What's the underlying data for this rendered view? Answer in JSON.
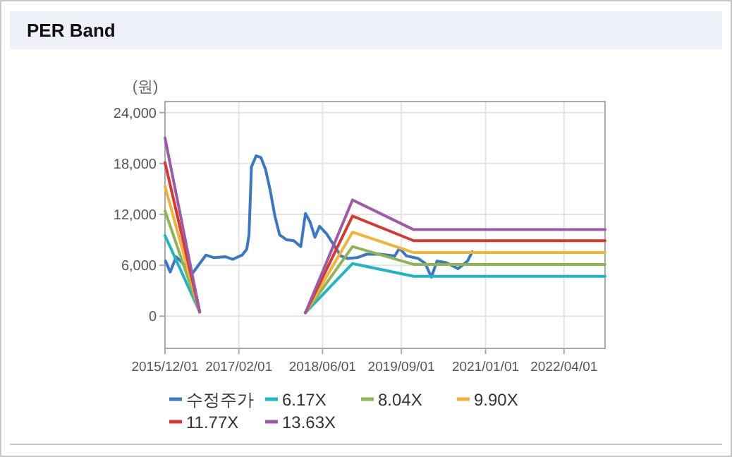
{
  "chart_data": {
    "type": "line",
    "title": "PER Band",
    "ylabel": "(원)",
    "xlim": [
      "2015-12-01",
      "2022-11-25"
    ],
    "ylim": [
      -3800,
      25300
    ],
    "xticks": [
      {
        "value": "2015-12-01",
        "label": "2015/12/01"
      },
      {
        "value": "2017-02-01",
        "label": "2017/02/01"
      },
      {
        "value": "2018-06-01",
        "label": "2018/06/01"
      },
      {
        "value": "2019-09-01",
        "label": "2019/09/01"
      },
      {
        "value": "2021-01-01",
        "label": "2021/01/01"
      },
      {
        "value": "2022-04-01",
        "label": "2022/04/01"
      }
    ],
    "yticks": [
      {
        "value": 0,
        "label": "0"
      },
      {
        "value": 6000,
        "label": "6,000"
      },
      {
        "value": 12000,
        "label": "12,000"
      },
      {
        "value": 18000,
        "label": "18,000"
      },
      {
        "value": 24000,
        "label": "24,000"
      }
    ],
    "grid": true,
    "legend": "bottom",
    "series": [
      {
        "name": "수정주가",
        "color": "#3a78c3",
        "x": [
          "2015-12-04",
          "2015-12-31",
          "2016-02-04",
          "2016-05-10",
          "2016-07-25",
          "2016-09-09",
          "2016-11-16",
          "2016-12-27",
          "2017-02-20",
          "2017-03-19",
          "2017-04-01",
          "2017-04-15",
          "2017-05-12",
          "2017-06-09",
          "2017-07-06",
          "2017-08-02",
          "2017-08-29",
          "2017-09-25",
          "2017-11-05",
          "2017-12-16",
          "2018-01-26",
          "2018-02-22",
          "2018-03-21",
          "2018-04-18",
          "2018-05-15",
          "2018-06-25",
          "2018-08-05",
          "2018-09-15",
          "2018-10-25",
          "2018-12-19",
          "2019-02-11",
          "2019-05-04",
          "2019-07-25",
          "2019-08-21",
          "2019-10-01",
          "2019-12-08",
          "2020-01-18",
          "2020-02-22",
          "2020-03-26",
          "2020-05-19",
          "2020-07-26",
          "2020-09-19",
          "2020-10-16"
        ],
        "values": [
          6500,
          5200,
          7000,
          5100,
          7200,
          6900,
          7000,
          6700,
          7200,
          7900,
          9600,
          17600,
          18900,
          18700,
          17300,
          14800,
          11800,
          9600,
          9000,
          8900,
          8200,
          12100,
          11100,
          9300,
          10600,
          9700,
          8400,
          7100,
          6800,
          6900,
          7300,
          7300,
          7100,
          8000,
          7100,
          6800,
          6200,
          4600,
          6500,
          6300,
          5600,
          6500,
          7600
        ]
      },
      {
        "name": "6.17X",
        "color": "#1fb5c4",
        "x": [
          "2015-12-01",
          "2016-06-19",
          "2017-06-01",
          "2018-02-22",
          "2018-11-22",
          "2019-11-11",
          "2022-11-25"
        ],
        "values": [
          9500,
          500,
          null,
          400,
          6200,
          4700,
          4700
        ]
      },
      {
        "name": "8.04X",
        "color": "#8db554",
        "x": [
          "2015-12-01",
          "2016-06-19",
          "2017-06-01",
          "2018-02-22",
          "2018-11-22",
          "2019-11-11",
          "2022-11-25"
        ],
        "values": [
          12400,
          500,
          null,
          400,
          8200,
          6100,
          6100
        ]
      },
      {
        "name": "9.90X",
        "color": "#f0b43a",
        "x": [
          "2015-12-01",
          "2016-06-19",
          "2017-06-01",
          "2018-02-22",
          "2018-11-22",
          "2019-11-11",
          "2022-11-25"
        ],
        "values": [
          15300,
          500,
          null,
          400,
          9900,
          7500,
          7500
        ]
      },
      {
        "name": "11.77X",
        "color": "#d9372f",
        "x": [
          "2015-12-01",
          "2016-06-19",
          "2017-06-01",
          "2018-02-22",
          "2018-11-22",
          "2019-11-11",
          "2022-11-25"
        ],
        "values": [
          18100,
          500,
          null,
          400,
          11800,
          8900,
          8900
        ]
      },
      {
        "name": "13.63X",
        "color": "#9d5aa8",
        "x": [
          "2015-12-01",
          "2016-06-19",
          "2017-06-01",
          "2018-02-22",
          "2018-11-22",
          "2019-11-11",
          "2022-11-25"
        ],
        "values": [
          21000,
          500,
          null,
          400,
          13700,
          10200,
          10200
        ]
      }
    ]
  }
}
